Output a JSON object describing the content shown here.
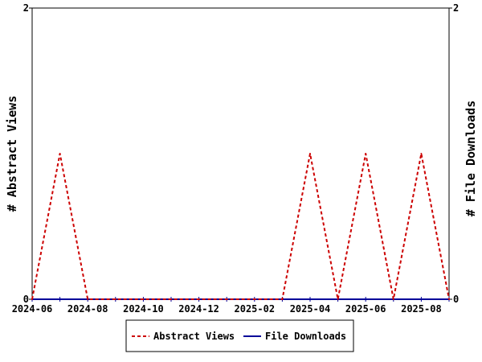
{
  "chart_data": {
    "type": "line",
    "x": [
      "2024-06",
      "2024-07",
      "2024-08",
      "2024-09",
      "2024-10",
      "2024-11",
      "2024-12",
      "2025-01",
      "2025-02",
      "2025-03",
      "2025-04",
      "2025-05",
      "2025-06",
      "2025-07",
      "2025-08",
      "2025-09"
    ],
    "x_tick_labels": [
      "2024-06",
      "2024-08",
      "2024-10",
      "2024-12",
      "2025-02",
      "2025-04",
      "2025-06",
      "2025-08"
    ],
    "ylabel": "# Abstract Views",
    "y2label": "# File Downloads",
    "ylim": [
      0,
      2
    ],
    "y2lim": [
      0,
      2
    ],
    "y_tick_labels": [
      "0",
      "2"
    ],
    "y2_tick_labels": [
      "0",
      "2"
    ],
    "grid": false,
    "legend_position": "bottom",
    "series": [
      {
        "name": "Abstract Views",
        "axis": "left",
        "color": "#cc0000",
        "style": "dashed",
        "values": [
          0,
          1,
          0,
          0,
          0,
          0,
          0,
          0,
          0,
          0,
          1,
          0,
          1,
          0,
          1,
          0
        ]
      },
      {
        "name": "File Downloads",
        "axis": "right",
        "color": "#000099",
        "style": "solid",
        "values": [
          0,
          0,
          0,
          0,
          0,
          0,
          0,
          0,
          0,
          0,
          0,
          0,
          0,
          0,
          0,
          0
        ]
      }
    ]
  }
}
